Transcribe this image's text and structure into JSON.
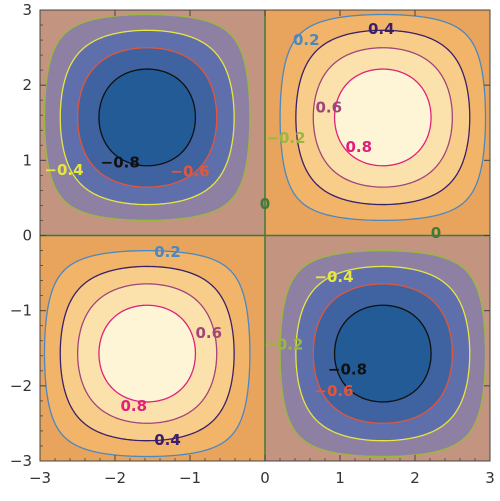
{
  "chart_data": {
    "type": "contour",
    "function": "sin(x)*sin(y)",
    "xlim": [
      -3,
      3
    ],
    "ylim": [
      -3,
      3
    ],
    "x_ticks": [
      -3,
      -2,
      -1,
      0,
      1,
      2,
      3
    ],
    "y_ticks": [
      -3,
      -2,
      -1,
      0,
      1,
      2,
      3
    ],
    "x_tick_labels": [
      "−3",
      "−2",
      "−1",
      "0",
      "1",
      "2",
      "3"
    ],
    "y_tick_labels": [
      "−3",
      "−2",
      "−1",
      "0",
      "1",
      "2",
      "3"
    ],
    "levels": [
      -0.8,
      -0.6,
      -0.4,
      -0.2,
      0,
      0.2,
      0.4,
      0.6,
      0.8
    ],
    "band_colors": [
      "#225b95",
      "#3f62a1",
      "#5e6fab",
      "#8d80a3",
      "#c3947f",
      "#e8a35c",
      "#f1b469",
      "#f8cd8a",
      "#fbe2ad",
      "#fef5d6"
    ],
    "line_colors": {
      "-0.8": "#101010",
      "-0.6": "#e2563a",
      "-0.4": "#e8e640",
      "-0.2": "#9ab840",
      "0": "#3f7a3a",
      "0.2": "#4a88c2",
      "0.4": "#3a1f6a",
      "0.6": "#a0447a",
      "0.8": "#e0207a"
    },
    "grid": false,
    "frame_color": "#444444",
    "contour_labels": [
      {
        "text": "0.2",
        "level": 0.2,
        "x": 0.55,
        "y": 2.6
      },
      {
        "text": "0.4",
        "level": 0.4,
        "x": 1.55,
        "y": 2.75
      },
      {
        "text": "0.6",
        "level": 0.6,
        "x": 0.85,
        "y": 1.7
      },
      {
        "text": "0.8",
        "level": 0.8,
        "x": 1.25,
        "y": 1.18
      },
      {
        "text": "−0.2",
        "level": -0.2,
        "x": 0.28,
        "y": 1.3
      },
      {
        "text": "−0.4",
        "level": -0.4,
        "x": -2.68,
        "y": 0.87
      },
      {
        "text": "−0.8",
        "level": -0.8,
        "x": -1.93,
        "y": 0.97
      },
      {
        "text": "−0.6",
        "level": -0.6,
        "x": -1.0,
        "y": 0.85
      },
      {
        "text": "0",
        "level": 0,
        "x": 0.0,
        "y": 0.42
      },
      {
        "text": "0",
        "level": 0,
        "x": 2.28,
        "y": 0.03
      },
      {
        "text": "0.2",
        "level": 0.2,
        "x": -1.3,
        "y": -0.22
      },
      {
        "text": "−0.4",
        "level": -0.4,
        "x": 0.92,
        "y": -0.55
      },
      {
        "text": "0.6",
        "level": 0.6,
        "x": -0.75,
        "y": -1.3
      },
      {
        "text": "−0.2",
        "level": -0.2,
        "x": 0.25,
        "y": -1.45
      },
      {
        "text": "−0.8",
        "level": -0.8,
        "x": 1.1,
        "y": -1.78
      },
      {
        "text": "−0.6",
        "level": -0.6,
        "x": 0.92,
        "y": -2.07
      },
      {
        "text": "0.8",
        "level": 0.8,
        "x": -1.75,
        "y": -2.27
      },
      {
        "text": "0.4",
        "level": 0.4,
        "x": -1.3,
        "y": -2.72
      }
    ]
  }
}
